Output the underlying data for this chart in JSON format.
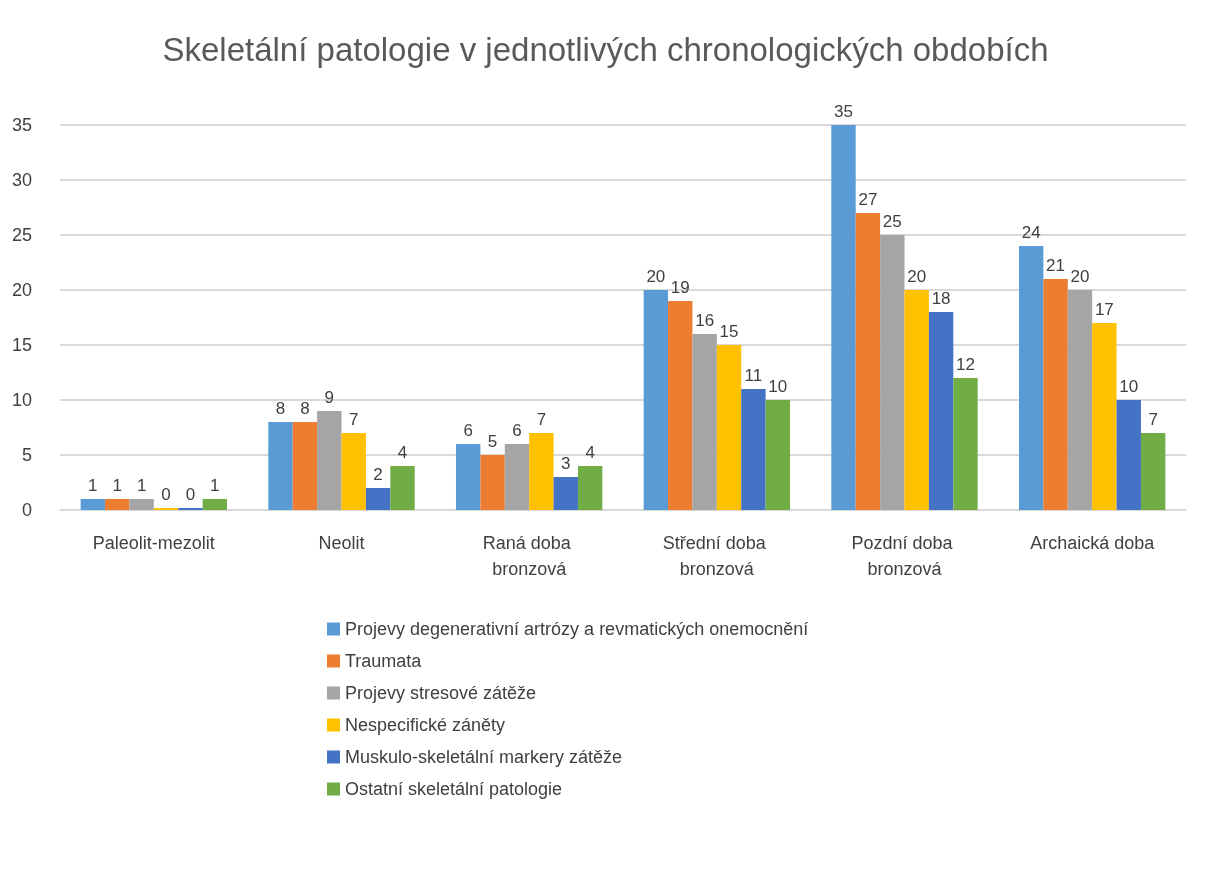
{
  "chart_data": {
    "type": "bar",
    "title": "Skeletální patologie v jednotlivých chronologických obdobích",
    "categories": [
      "Paleolit-mezolit",
      "Neolit",
      "Raná doba bronzová",
      "Střední doba bronzová",
      "Pozdní doba bronzová",
      "Archaická doba"
    ],
    "series": [
      {
        "name": "Projevy degenerativní artrózy a revmatických onemocnění",
        "color": "#5b9bd5",
        "values": [
          1,
          8,
          6,
          20,
          35,
          24
        ]
      },
      {
        "name": "Traumata",
        "color": "#ed7d31",
        "values": [
          1,
          8,
          5,
          19,
          27,
          21
        ]
      },
      {
        "name": "Projevy stresové zátěže",
        "color": "#a5a5a5",
        "values": [
          1,
          9,
          6,
          16,
          25,
          20
        ]
      },
      {
        "name": "Nespecifické záněty",
        "color": "#ffc000",
        "values": [
          0,
          7,
          7,
          15,
          20,
          17
        ]
      },
      {
        "name": "Muskulo-skeletální markery zátěže",
        "color": "#4472c4",
        "values": [
          0,
          2,
          3,
          11,
          18,
          10
        ]
      },
      {
        "name": "Ostatní skeletální patologie",
        "color": "#70ad47",
        "values": [
          1,
          4,
          4,
          10,
          12,
          7
        ]
      }
    ],
    "ylim": [
      0,
      35
    ],
    "yticks": [
      0,
      5,
      10,
      15,
      20,
      25,
      30,
      35
    ],
    "grid": "y",
    "legend": "bottom",
    "data_labels": true
  }
}
